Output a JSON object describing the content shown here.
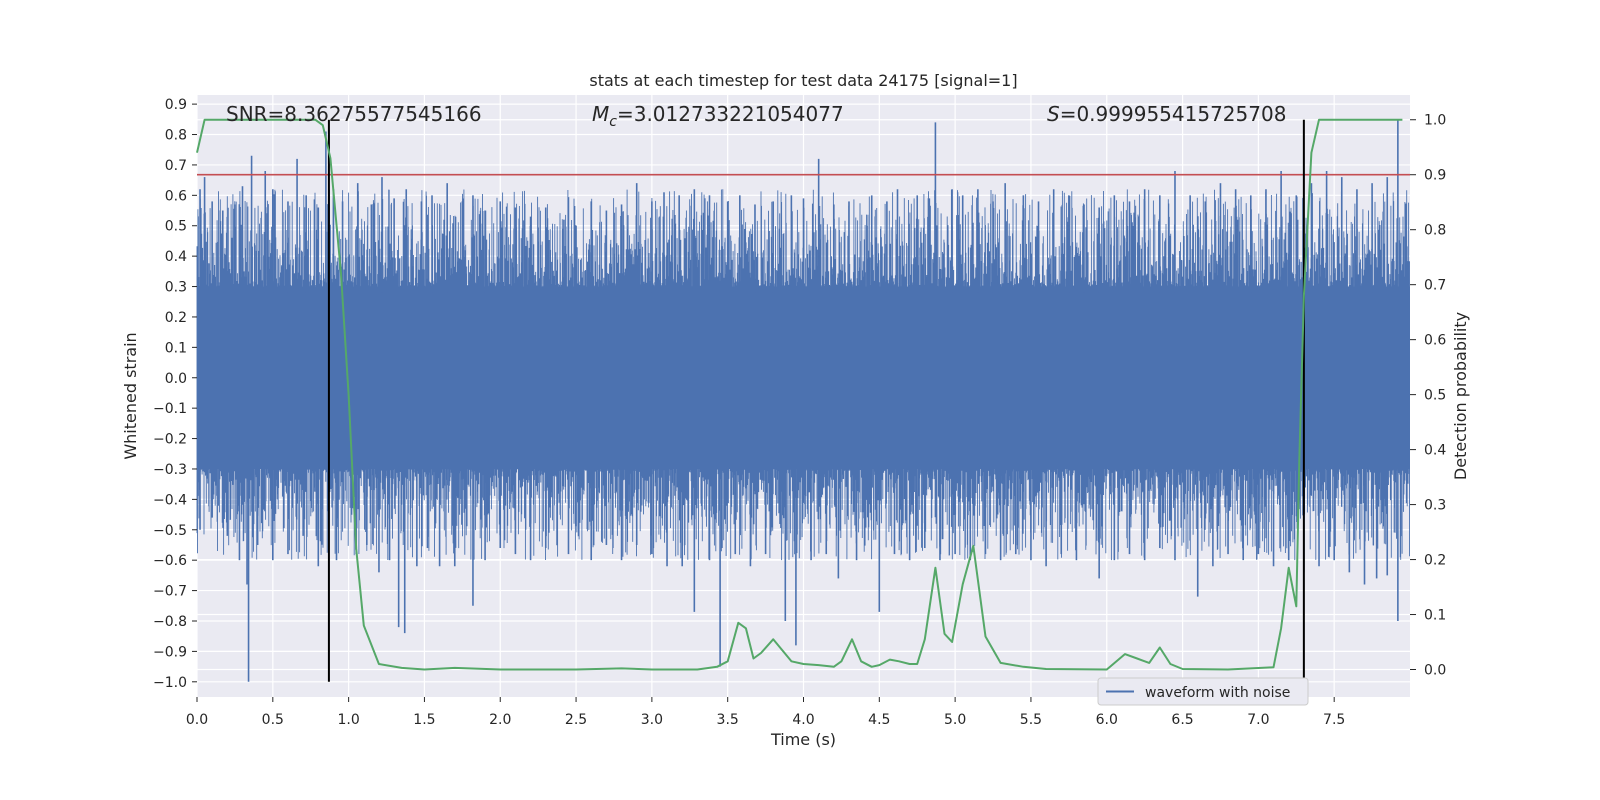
{
  "chart_data": {
    "type": "line",
    "title": "stats at each timestep for test data 24175 [signal=1]",
    "xlabel": "Time (s)",
    "ylabel_left": "Whitened strain",
    "ylabel_right": "Detection probability",
    "xlim": [
      0.0,
      8.0
    ],
    "ylim_left": [
      -1.05,
      0.93
    ],
    "ylim_right": [
      -0.05,
      1.045
    ],
    "x_ticks": [
      0.0,
      0.5,
      1.0,
      1.5,
      2.0,
      2.5,
      3.0,
      3.5,
      4.0,
      4.5,
      5.0,
      5.5,
      6.0,
      6.5,
      7.0,
      7.5
    ],
    "x_tick_labels": [
      "0.0",
      "0.5",
      "1.0",
      "1.5",
      "2.0",
      "2.5",
      "3.0",
      "3.5",
      "4.0",
      "4.5",
      "5.0",
      "5.5",
      "6.0",
      "6.5",
      "7.0",
      "7.5"
    ],
    "y_left_ticks": [
      0.9,
      0.8,
      0.7,
      0.6,
      0.5,
      0.4,
      0.3,
      0.2,
      0.1,
      0.0,
      -0.1,
      -0.2,
      -0.3,
      -0.4,
      -0.5,
      -0.6,
      -0.7,
      -0.8,
      -0.9,
      -1.0
    ],
    "y_left_tick_labels": [
      "0.9",
      "0.8",
      "0.7",
      "0.6",
      "0.5",
      "0.4",
      "0.3",
      "0.2",
      "0.1",
      "0.0",
      "−0.1",
      "−0.2",
      "−0.3",
      "−0.4",
      "−0.5",
      "−0.6",
      "−0.7",
      "−0.8",
      "−0.9",
      "−1.0"
    ],
    "y_right_ticks": [
      1.0,
      0.9,
      0.8,
      0.7,
      0.6,
      0.5,
      0.4,
      0.3,
      0.2,
      0.1,
      0.0
    ],
    "y_right_tick_labels": [
      "1.0",
      "0.9",
      "0.8",
      "0.7",
      "0.6",
      "0.5",
      "0.4",
      "0.3",
      "0.2",
      "0.1",
      "0.0"
    ],
    "annotations": {
      "snr": "SNR=8.36275577545166",
      "mc_symbol": "M",
      "mc_sub": "c",
      "mc_value": "=3.012733221054077",
      "s_symbol": "S",
      "s_value": "=0.999955415725708"
    },
    "legend": {
      "placement": "lower-right",
      "entries": [
        "waveform with noise"
      ]
    },
    "threshold": {
      "axis": "right",
      "value": 0.9,
      "color": "#c44e52"
    },
    "vlines": [
      0.87,
      7.3
    ],
    "vline_ymax_right": 1.0,
    "series": [
      {
        "name": "waveform with noise",
        "axis": "left",
        "color": "#4c72b0",
        "kind": "dense-noise",
        "core_range": [
          -0.3,
          0.3
        ],
        "upper_spikes": [
          [
            0.02,
            0.62
          ],
          [
            0.05,
            0.66
          ],
          [
            0.1,
            0.58
          ],
          [
            0.17,
            0.55
          ],
          [
            0.25,
            0.57
          ],
          [
            0.3,
            0.63
          ],
          [
            0.36,
            0.73
          ],
          [
            0.45,
            0.68
          ],
          [
            0.5,
            0.62
          ],
          [
            0.6,
            0.58
          ],
          [
            0.66,
            0.72
          ],
          [
            0.72,
            0.6
          ],
          [
            0.8,
            0.56
          ],
          [
            0.85,
            0.81
          ],
          [
            0.9,
            0.62
          ],
          [
            0.96,
            0.58
          ],
          [
            1.06,
            0.64
          ],
          [
            1.15,
            0.57
          ],
          [
            1.22,
            0.66
          ],
          [
            1.3,
            0.59
          ],
          [
            1.38,
            0.62
          ],
          [
            1.48,
            0.58
          ],
          [
            1.55,
            0.6
          ],
          [
            1.65,
            0.64
          ],
          [
            1.75,
            0.58
          ],
          [
            1.82,
            0.6
          ],
          [
            1.9,
            0.55
          ],
          [
            2.0,
            0.58
          ],
          [
            2.1,
            0.56
          ],
          [
            2.2,
            0.53
          ],
          [
            2.3,
            0.56
          ],
          [
            2.42,
            0.52
          ],
          [
            2.5,
            0.5
          ],
          [
            2.6,
            0.58
          ],
          [
            2.7,
            0.55
          ],
          [
            2.8,
            0.57
          ],
          [
            2.9,
            0.64
          ],
          [
            3.0,
            0.58
          ],
          [
            3.08,
            0.61
          ],
          [
            3.18,
            0.6
          ],
          [
            3.28,
            0.62
          ],
          [
            3.38,
            0.6
          ],
          [
            3.5,
            0.58
          ],
          [
            3.58,
            0.6
          ],
          [
            3.68,
            0.57
          ],
          [
            3.8,
            0.58
          ],
          [
            3.92,
            0.6
          ],
          [
            4.0,
            0.59
          ],
          [
            4.1,
            0.72
          ],
          [
            4.2,
            0.57
          ],
          [
            4.3,
            0.58
          ],
          [
            4.45,
            0.6
          ],
          [
            4.55,
            0.58
          ],
          [
            4.62,
            0.62
          ],
          [
            4.75,
            0.6
          ],
          [
            4.83,
            0.59
          ],
          [
            4.87,
            0.84
          ],
          [
            4.98,
            0.62
          ],
          [
            5.05,
            0.6
          ],
          [
            5.15,
            0.62
          ],
          [
            5.25,
            0.58
          ],
          [
            5.33,
            0.64
          ],
          [
            5.45,
            0.6
          ],
          [
            5.55,
            0.58
          ],
          [
            5.65,
            0.62
          ],
          [
            5.75,
            0.6
          ],
          [
            5.85,
            0.57
          ],
          [
            5.95,
            0.56
          ],
          [
            6.05,
            0.6
          ],
          [
            6.15,
            0.58
          ],
          [
            6.25,
            0.62
          ],
          [
            6.35,
            0.6
          ],
          [
            6.45,
            0.68
          ],
          [
            6.55,
            0.6
          ],
          [
            6.65,
            0.58
          ],
          [
            6.75,
            0.64
          ],
          [
            6.85,
            0.62
          ],
          [
            6.95,
            0.6
          ],
          [
            7.05,
            0.62
          ],
          [
            7.15,
            0.68
          ],
          [
            7.25,
            0.6
          ],
          [
            7.35,
            0.64
          ],
          [
            7.45,
            0.68
          ],
          [
            7.55,
            0.66
          ],
          [
            7.65,
            0.62
          ],
          [
            7.75,
            0.64
          ],
          [
            7.85,
            0.66
          ],
          [
            7.92,
            0.85
          ]
        ],
        "lower_spikes": [
          [
            0.02,
            -0.5
          ],
          [
            0.1,
            -0.46
          ],
          [
            0.2,
            -0.52
          ],
          [
            0.28,
            -0.6
          ],
          [
            0.33,
            -0.68
          ],
          [
            0.34,
            -1.0
          ],
          [
            0.4,
            -0.55
          ],
          [
            0.5,
            -0.6
          ],
          [
            0.6,
            -0.58
          ],
          [
            0.7,
            -0.52
          ],
          [
            0.8,
            -0.62
          ],
          [
            0.92,
            -0.6
          ],
          [
            1.05,
            -0.58
          ],
          [
            1.12,
            -0.55
          ],
          [
            1.2,
            -0.64
          ],
          [
            1.27,
            -0.6
          ],
          [
            1.33,
            -0.82
          ],
          [
            1.37,
            -0.84
          ],
          [
            1.45,
            -0.62
          ],
          [
            1.52,
            -0.56
          ],
          [
            1.6,
            -0.62
          ],
          [
            1.7,
            -0.62
          ],
          [
            1.82,
            -0.75
          ],
          [
            1.9,
            -0.6
          ],
          [
            2.0,
            -0.56
          ],
          [
            2.1,
            -0.58
          ],
          [
            2.2,
            -0.6
          ],
          [
            2.3,
            -0.56
          ],
          [
            2.45,
            -0.58
          ],
          [
            2.6,
            -0.6
          ],
          [
            2.7,
            -0.55
          ],
          [
            2.8,
            -0.6
          ],
          [
            2.9,
            -0.55
          ],
          [
            3.0,
            -0.58
          ],
          [
            3.1,
            -0.62
          ],
          [
            3.2,
            -0.62
          ],
          [
            3.28,
            -0.77
          ],
          [
            3.38,
            -0.6
          ],
          [
            3.45,
            -0.95
          ],
          [
            3.55,
            -0.58
          ],
          [
            3.65,
            -0.62
          ],
          [
            3.75,
            -0.58
          ],
          [
            3.88,
            -0.8
          ],
          [
            3.95,
            -0.88
          ],
          [
            4.05,
            -0.6
          ],
          [
            4.15,
            -0.58
          ],
          [
            4.23,
            -0.66
          ],
          [
            4.35,
            -0.6
          ],
          [
            4.5,
            -0.77
          ],
          [
            4.6,
            -0.58
          ],
          [
            4.7,
            -0.6
          ],
          [
            4.8,
            -0.56
          ],
          [
            4.9,
            -0.6
          ],
          [
            5.0,
            -0.58
          ],
          [
            5.1,
            -0.6
          ],
          [
            5.2,
            -0.58
          ],
          [
            5.3,
            -0.6
          ],
          [
            5.4,
            -0.58
          ],
          [
            5.5,
            -0.6
          ],
          [
            5.6,
            -0.62
          ],
          [
            5.7,
            -0.58
          ],
          [
            5.8,
            -0.6
          ],
          [
            5.95,
            -0.66
          ],
          [
            6.05,
            -0.6
          ],
          [
            6.15,
            -0.58
          ],
          [
            6.25,
            -0.6
          ],
          [
            6.35,
            -0.56
          ],
          [
            6.45,
            -0.6
          ],
          [
            6.6,
            -0.72
          ],
          [
            6.7,
            -0.62
          ],
          [
            6.8,
            -0.58
          ],
          [
            6.9,
            -0.6
          ],
          [
            7.0,
            -0.58
          ],
          [
            7.1,
            -0.62
          ],
          [
            7.2,
            -0.6
          ],
          [
            7.3,
            -0.64
          ],
          [
            7.4,
            -0.62
          ],
          [
            7.5,
            -0.6
          ],
          [
            7.6,
            -0.64
          ],
          [
            7.7,
            -0.68
          ],
          [
            7.78,
            -0.66
          ],
          [
            7.85,
            -0.65
          ],
          [
            7.92,
            -0.8
          ]
        ]
      },
      {
        "name": "detection probability",
        "axis": "right",
        "color": "#55a868",
        "x": [
          0.0,
          0.05,
          0.1,
          0.3,
          0.5,
          0.7,
          0.78,
          0.83,
          0.88,
          0.95,
          1.0,
          1.05,
          1.1,
          1.2,
          1.35,
          1.5,
          1.7,
          2.0,
          2.5,
          2.8,
          3.0,
          3.3,
          3.43,
          3.5,
          3.57,
          3.62,
          3.67,
          3.72,
          3.8,
          3.92,
          4.0,
          4.1,
          4.2,
          4.25,
          4.32,
          4.38,
          4.45,
          4.5,
          4.57,
          4.63,
          4.7,
          4.75,
          4.8,
          4.87,
          4.93,
          4.98,
          5.05,
          5.12,
          5.2,
          5.3,
          5.45,
          5.6,
          6.0,
          6.12,
          6.2,
          6.28,
          6.35,
          6.42,
          6.5,
          6.8,
          7.1,
          7.15,
          7.2,
          7.25,
          7.27,
          7.3,
          7.35,
          7.4,
          7.5,
          7.6,
          7.8,
          7.95
        ],
        "values": [
          0.94,
          1.0,
          1.0,
          1.0,
          1.0,
          1.0,
          1.0,
          0.99,
          0.93,
          0.72,
          0.5,
          0.22,
          0.08,
          0.01,
          0.003,
          0.0,
          0.003,
          0.0,
          0.0,
          0.002,
          0.0,
          0.0,
          0.005,
          0.015,
          0.085,
          0.075,
          0.02,
          0.03,
          0.055,
          0.015,
          0.01,
          0.008,
          0.005,
          0.015,
          0.055,
          0.015,
          0.005,
          0.008,
          0.018,
          0.015,
          0.01,
          0.01,
          0.055,
          0.185,
          0.065,
          0.05,
          0.155,
          0.225,
          0.06,
          0.012,
          0.005,
          0.001,
          0.0,
          0.028,
          0.02,
          0.012,
          0.04,
          0.01,
          0.001,
          0.0,
          0.004,
          0.075,
          0.185,
          0.115,
          0.38,
          0.68,
          0.94,
          1.0,
          1.0,
          1.0,
          1.0,
          1.0
        ]
      }
    ]
  }
}
